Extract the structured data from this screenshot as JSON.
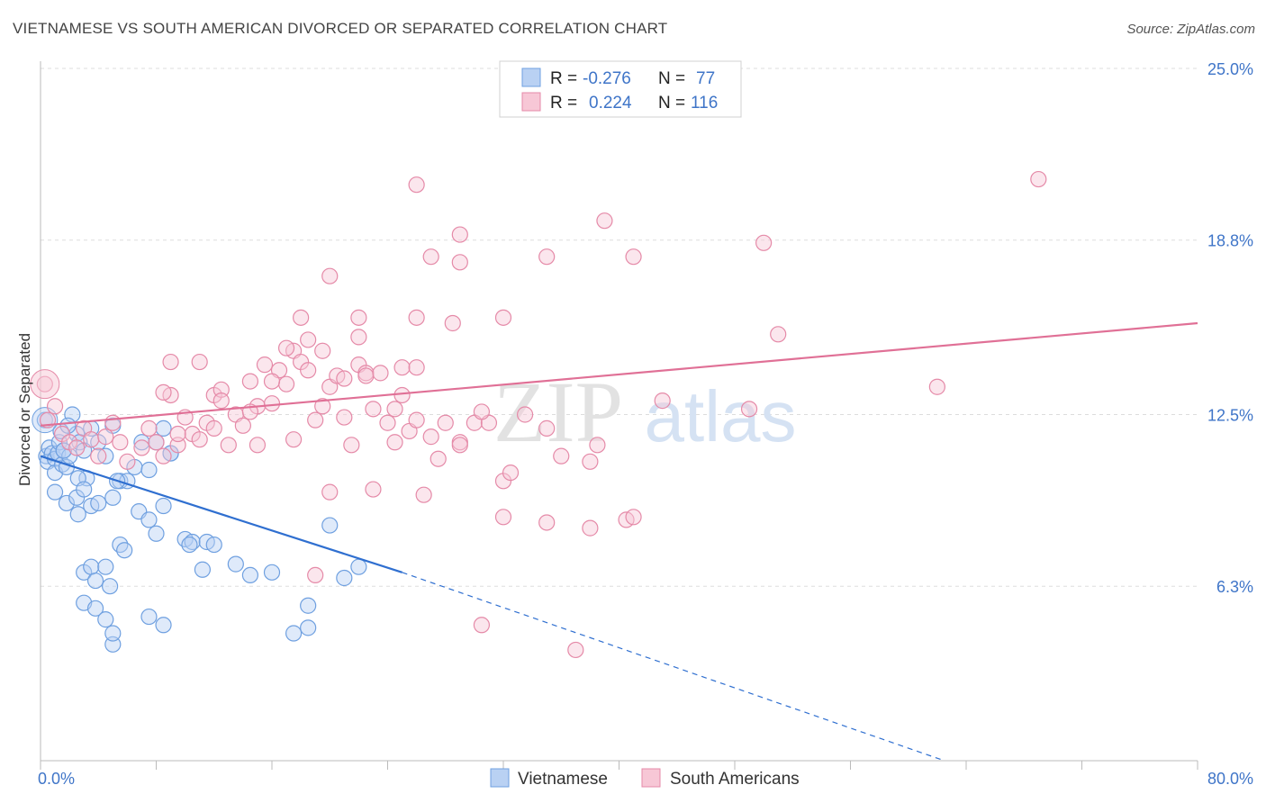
{
  "title": "VIETNAMESE VS SOUTH AMERICAN DIVORCED OR SEPARATED CORRELATION CHART",
  "source": "Source: ZipAtlas.com",
  "watermark": {
    "zip": "ZIP",
    "atlas": "atlas"
  },
  "colors": {
    "blue": "#6fa0e0",
    "blue_fill": "#b9d1f3",
    "blue_line": "#2f6fd0",
    "pink": "#e58aa8",
    "pink_fill": "#f7c7d6",
    "pink_line": "#e07096",
    "axis_label": "#3f75c8",
    "grid": "#dddddd"
  },
  "legend_top": {
    "rows": [
      {
        "r_label": "R =",
        "r_value": "-0.276",
        "n_label": "N =",
        "n_value": "77"
      },
      {
        "r_label": "R =",
        "r_value": "0.224",
        "n_label": "N =",
        "n_value": "116"
      }
    ]
  },
  "legend_bottom": [
    "Vietnamese",
    "South Americans"
  ],
  "chart_data": {
    "type": "scatter",
    "xlabel": "",
    "ylabel": "Divorced or Separated",
    "xlim": [
      0,
      80
    ],
    "ylim": [
      0,
      25
    ],
    "x_tick_labels": [
      {
        "v": 0,
        "t": "0.0%"
      },
      {
        "v": 80,
        "t": "80.0%"
      }
    ],
    "y_tick_labels": [
      {
        "v": 6.3,
        "t": "6.3%"
      },
      {
        "v": 12.5,
        "t": "12.5%"
      },
      {
        "v": 18.8,
        "t": "18.8%"
      },
      {
        "v": 25.0,
        "t": "25.0%"
      }
    ],
    "series": [
      {
        "name": "Vietnamese",
        "trend": {
          "x0": 0,
          "y0": 11.0,
          "x1": 25,
          "y1": 6.8,
          "dash_to_x": 62.5,
          "dash_to_y": 0.0
        },
        "points": [
          [
            0.3,
            12.3
          ],
          [
            0.4,
            11.0
          ],
          [
            0.5,
            10.8
          ],
          [
            0.6,
            11.3
          ],
          [
            0.8,
            11.1
          ],
          [
            1.0,
            10.9
          ],
          [
            1.0,
            10.4
          ],
          [
            1.2,
            11.1
          ],
          [
            1.3,
            11.5
          ],
          [
            1.4,
            11.9
          ],
          [
            1.5,
            10.7
          ],
          [
            1.6,
            11.2
          ],
          [
            1.8,
            10.6
          ],
          [
            2.0,
            11.0
          ],
          [
            2.2,
            12.5
          ],
          [
            2.5,
            11.8
          ],
          [
            2.7,
            11.5
          ],
          [
            3.0,
            11.2
          ],
          [
            3.2,
            10.2
          ],
          [
            1.6,
            11.2
          ],
          [
            1.9,
            12.1
          ],
          [
            2.6,
            10.2
          ],
          [
            3.5,
            12.0
          ],
          [
            4.0,
            11.5
          ],
          [
            4.5,
            11.0
          ],
          [
            5.0,
            12.1
          ],
          [
            5.5,
            10.1
          ],
          [
            6.0,
            10.1
          ],
          [
            6.5,
            10.6
          ],
          [
            7.0,
            11.5
          ],
          [
            7.5,
            10.5
          ],
          [
            8.0,
            11.5
          ],
          [
            8.5,
            12.0
          ],
          [
            9.0,
            11.1
          ],
          [
            1.0,
            9.7
          ],
          [
            1.8,
            9.3
          ],
          [
            2.5,
            9.5
          ],
          [
            2.6,
            8.9
          ],
          [
            3.0,
            9.8
          ],
          [
            3.5,
            9.2
          ],
          [
            4.0,
            9.3
          ],
          [
            5.0,
            9.5
          ],
          [
            5.5,
            7.8
          ],
          [
            5.3,
            10.1
          ],
          [
            6.8,
            9.0
          ],
          [
            7.5,
            8.7
          ],
          [
            8.0,
            8.2
          ],
          [
            8.5,
            9.2
          ],
          [
            9.0,
            11.1
          ],
          [
            10.0,
            8.0
          ],
          [
            10.5,
            7.9
          ],
          [
            11.5,
            7.9
          ],
          [
            12.0,
            7.8
          ],
          [
            3.0,
            6.8
          ],
          [
            3.5,
            7.0
          ],
          [
            3.8,
            6.5
          ],
          [
            4.5,
            7.0
          ],
          [
            4.8,
            6.3
          ],
          [
            5.8,
            7.6
          ],
          [
            10.3,
            7.8
          ],
          [
            11.2,
            6.9
          ],
          [
            13.5,
            7.1
          ],
          [
            14.5,
            6.7
          ],
          [
            16.0,
            6.8
          ],
          [
            3.0,
            5.7
          ],
          [
            3.8,
            5.5
          ],
          [
            4.5,
            5.1
          ],
          [
            5.0,
            4.2
          ],
          [
            5.0,
            4.6
          ],
          [
            7.5,
            5.2
          ],
          [
            8.5,
            4.9
          ],
          [
            17.5,
            4.6
          ],
          [
            18.5,
            4.8
          ],
          [
            20.0,
            8.5
          ],
          [
            21.0,
            6.6
          ],
          [
            22.0,
            7.0
          ],
          [
            18.5,
            5.6
          ]
        ]
      },
      {
        "name": "South Americans",
        "trend": {
          "x0": 0,
          "y0": 12.1,
          "x1": 80,
          "y1": 15.8
        },
        "points": [
          [
            0.3,
            13.6
          ],
          [
            0.5,
            12.3
          ],
          [
            1.0,
            12.8
          ],
          [
            1.5,
            11.8
          ],
          [
            2.0,
            11.5
          ],
          [
            2.5,
            11.3
          ],
          [
            3.0,
            12.0
          ],
          [
            3.5,
            11.6
          ],
          [
            4.0,
            11.0
          ],
          [
            4.5,
            11.7
          ],
          [
            5.0,
            12.2
          ],
          [
            5.5,
            11.5
          ],
          [
            6.0,
            10.8
          ],
          [
            7.0,
            11.3
          ],
          [
            7.5,
            12.0
          ],
          [
            8.0,
            11.5
          ],
          [
            8.5,
            11.0
          ],
          [
            9.0,
            13.2
          ],
          [
            9.5,
            11.4
          ],
          [
            10.0,
            12.4
          ],
          [
            10.5,
            11.8
          ],
          [
            11.0,
            11.6
          ],
          [
            11.5,
            12.2
          ],
          [
            12.0,
            13.2
          ],
          [
            12.5,
            13.4
          ],
          [
            13.0,
            11.4
          ],
          [
            13.5,
            12.5
          ],
          [
            14.0,
            12.1
          ],
          [
            14.5,
            13.7
          ],
          [
            15.0,
            12.8
          ],
          [
            15.5,
            14.3
          ],
          [
            16.0,
            12.9
          ],
          [
            16.5,
            14.1
          ],
          [
            17.0,
            13.6
          ],
          [
            17.5,
            14.8
          ],
          [
            18.0,
            14.4
          ],
          [
            18.5,
            14.1
          ],
          [
            19.0,
            12.3
          ],
          [
            19.5,
            12.8
          ],
          [
            20.0,
            13.5
          ],
          [
            20.5,
            13.9
          ],
          [
            21.0,
            12.4
          ],
          [
            21.5,
            11.4
          ],
          [
            22.0,
            14.3
          ],
          [
            22.5,
            14.0
          ],
          [
            23.0,
            12.7
          ],
          [
            24.0,
            12.2
          ],
          [
            24.5,
            11.5
          ],
          [
            25.0,
            13.2
          ],
          [
            25.5,
            11.9
          ],
          [
            26.0,
            12.3
          ],
          [
            27.0,
            11.7
          ],
          [
            27.5,
            10.9
          ],
          [
            28.0,
            12.2
          ],
          [
            29.0,
            11.5
          ],
          [
            30.0,
            12.2
          ],
          [
            31.0,
            12.2
          ],
          [
            32.0,
            10.1
          ],
          [
            8.5,
            13.3
          ],
          [
            9.0,
            14.4
          ],
          [
            11.0,
            14.4
          ],
          [
            12.5,
            13.0
          ],
          [
            14.5,
            12.6
          ],
          [
            16.0,
            13.7
          ],
          [
            17.0,
            14.9
          ],
          [
            18.5,
            15.2
          ],
          [
            19.5,
            14.8
          ],
          [
            21.0,
            13.8
          ],
          [
            22.0,
            15.3
          ],
          [
            22.5,
            13.9
          ],
          [
            23.5,
            14.0
          ],
          [
            25.0,
            14.2
          ],
          [
            26.0,
            14.2
          ],
          [
            18.0,
            16.0
          ],
          [
            20.0,
            17.5
          ],
          [
            22.0,
            16.0
          ],
          [
            26.0,
            16.0
          ],
          [
            28.5,
            15.8
          ],
          [
            32.0,
            16.0
          ],
          [
            27.0,
            18.2
          ],
          [
            29.0,
            18.0
          ],
          [
            29.0,
            19.0
          ],
          [
            35.0,
            18.2
          ],
          [
            39.0,
            19.5
          ],
          [
            41.0,
            18.2
          ],
          [
            26.0,
            20.8
          ],
          [
            50.0,
            18.7
          ],
          [
            69.0,
            21.0
          ],
          [
            29.0,
            11.4
          ],
          [
            30.5,
            12.6
          ],
          [
            32.5,
            10.4
          ],
          [
            33.5,
            12.5
          ],
          [
            35.0,
            12.0
          ],
          [
            36.0,
            11.0
          ],
          [
            38.0,
            10.8
          ],
          [
            38.5,
            11.4
          ],
          [
            43.0,
            13.0
          ],
          [
            49.0,
            12.7
          ],
          [
            51.0,
            15.4
          ],
          [
            62.0,
            13.5
          ],
          [
            20.0,
            9.7
          ],
          [
            23.0,
            9.8
          ],
          [
            26.5,
            9.6
          ],
          [
            32.0,
            8.8
          ],
          [
            35.0,
            8.6
          ],
          [
            38.0,
            8.4
          ],
          [
            40.5,
            8.7
          ],
          [
            41.0,
            8.8
          ],
          [
            19.0,
            6.7
          ],
          [
            30.5,
            4.9
          ],
          [
            37.0,
            4.0
          ],
          [
            9.5,
            11.8
          ],
          [
            12.0,
            12.0
          ],
          [
            15.0,
            11.4
          ],
          [
            17.5,
            11.6
          ],
          [
            24.5,
            12.7
          ]
        ]
      }
    ],
    "grid": true,
    "legend_placement": "top-center"
  }
}
